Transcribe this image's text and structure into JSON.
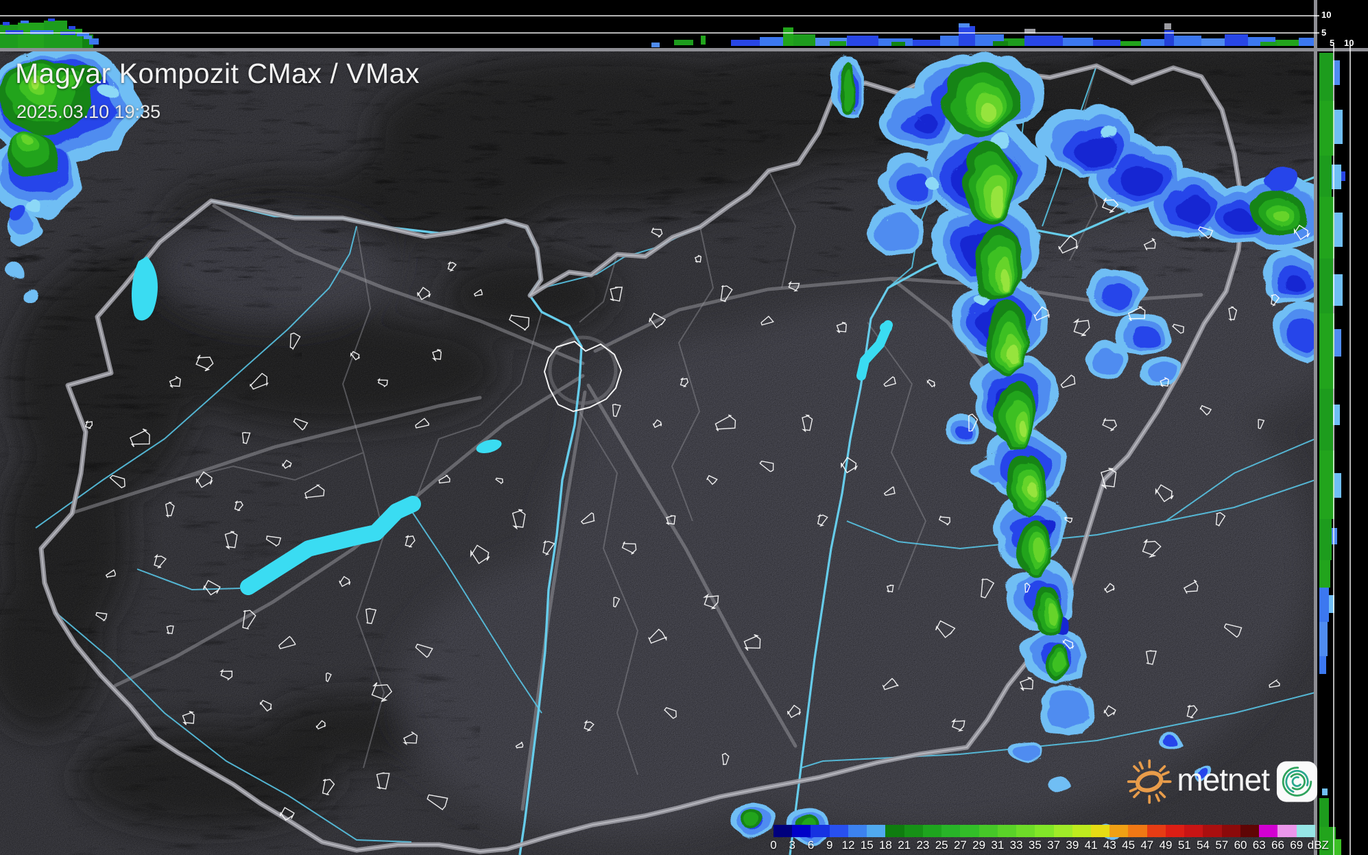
{
  "header": {
    "title": "Magyar Kompozit CMax / VMax",
    "timestamp": "2025.03.10 19:35"
  },
  "axes": {
    "top_profile_ticks": [
      "10",
      "5"
    ],
    "right_profile_ticks": [
      "5",
      "10"
    ]
  },
  "colorbar": {
    "unit": "dBZ",
    "labels": [
      "0",
      "3",
      "6",
      "9",
      "12",
      "15",
      "18",
      "21",
      "23",
      "25",
      "27",
      "29",
      "31",
      "33",
      "35",
      "37",
      "39",
      "41",
      "43",
      "45",
      "47",
      "49",
      "51",
      "54",
      "57",
      "60",
      "63",
      "66",
      "69"
    ],
    "colors": [
      "#00007D",
      "#0000C8",
      "#1632E1",
      "#2850F0",
      "#3C82F0",
      "#50AAF0",
      "#0F7D0F",
      "#169116",
      "#1EA51E",
      "#28B428",
      "#32BE28",
      "#46C828",
      "#5AD228",
      "#6EDC28",
      "#82E628",
      "#A0EB28",
      "#BEEB1E",
      "#E6DC14",
      "#F0A014",
      "#F07814",
      "#E63C14",
      "#DC1E14",
      "#C81414",
      "#AA0F0F",
      "#8C0A0A",
      "#5F0505",
      "#D200D2",
      "#EB96EB",
      "#96E6E6"
    ]
  },
  "logo": {
    "text": "metnet"
  },
  "colors": {
    "water": "#3ADCF2",
    "river": "#58C4E4",
    "country_border": "#A9A9B1",
    "terrain_base": "#3A3A40",
    "profile_grid": "#FFFFFF"
  }
}
